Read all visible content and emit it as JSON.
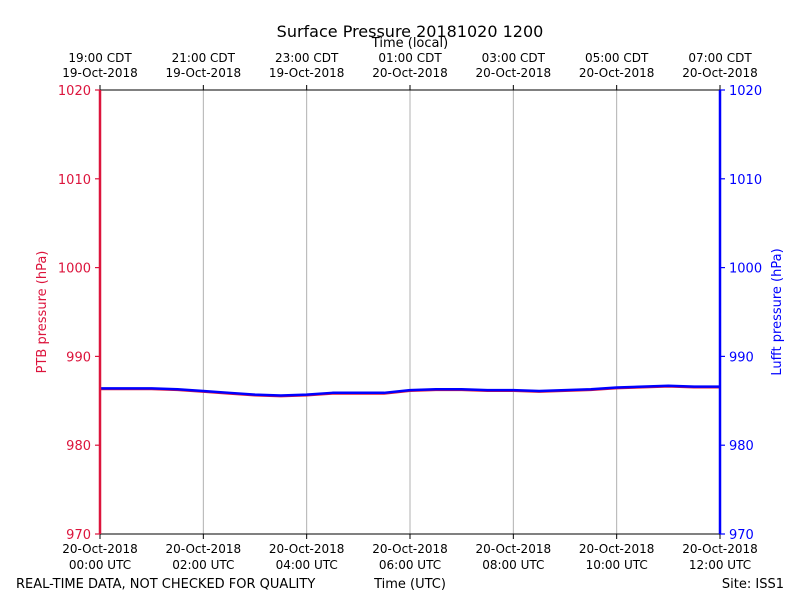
{
  "chart_data": {
    "type": "line",
    "title": "Surface Pressure 20181020 1200",
    "top_axis_label": "Time (local)",
    "xlabel": "Time (UTC)",
    "ylabel_left": "PTB pressure (hPa)",
    "ylabel_right": "Lufft pressure (hPa)",
    "ylim": [
      970,
      1020
    ],
    "y_ticks": [
      "970",
      "980",
      "990",
      "1000",
      "1010",
      "1020"
    ],
    "x_range_hours_utc": [
      0,
      12
    ],
    "bottom_ticks": [
      {
        "hour": 0,
        "line1": "20-Oct-2018",
        "line2": "00:00 UTC"
      },
      {
        "hour": 2,
        "line1": "20-Oct-2018",
        "line2": "02:00 UTC"
      },
      {
        "hour": 4,
        "line1": "20-Oct-2018",
        "line2": "04:00 UTC"
      },
      {
        "hour": 6,
        "line1": "20-Oct-2018",
        "line2": "06:00 UTC"
      },
      {
        "hour": 8,
        "line1": "20-Oct-2018",
        "line2": "08:00 UTC"
      },
      {
        "hour": 10,
        "line1": "20-Oct-2018",
        "line2": "10:00 UTC"
      },
      {
        "hour": 12,
        "line1": "20-Oct-2018",
        "line2": "12:00 UTC"
      }
    ],
    "top_ticks": [
      {
        "hour": 0,
        "line1": "19:00 CDT",
        "line2": "19-Oct-2018"
      },
      {
        "hour": 2,
        "line1": "21:00 CDT",
        "line2": "19-Oct-2018"
      },
      {
        "hour": 4,
        "line1": "23:00 CDT",
        "line2": "19-Oct-2018"
      },
      {
        "hour": 6,
        "line1": "01:00 CDT",
        "line2": "20-Oct-2018"
      },
      {
        "hour": 8,
        "line1": "03:00 CDT",
        "line2": "20-Oct-2018"
      },
      {
        "hour": 10,
        "line1": "05:00 CDT",
        "line2": "20-Oct-2018"
      },
      {
        "hour": 12,
        "line1": "07:00 CDT",
        "line2": "20-Oct-2018"
      }
    ],
    "series": [
      {
        "name": "PTB pressure",
        "axis": "left",
        "color": "#dc143c",
        "x": [
          0,
          0.5,
          1,
          1.5,
          2,
          2.5,
          3,
          3.5,
          4,
          4.5,
          5,
          5.5,
          6,
          6.5,
          7,
          7.5,
          8,
          8.5,
          9,
          9.5,
          10,
          10.5,
          11,
          11.5,
          12
        ],
        "values": [
          986.3,
          986.3,
          986.3,
          986.2,
          986.0,
          985.8,
          985.6,
          985.5,
          985.6,
          985.8,
          985.8,
          985.8,
          986.1,
          986.2,
          986.2,
          986.1,
          986.1,
          986.0,
          986.1,
          986.2,
          986.4,
          986.5,
          986.6,
          986.5,
          986.5
        ]
      },
      {
        "name": "Lufft pressure",
        "axis": "right",
        "color": "#0000ff",
        "x": [
          0,
          0.5,
          1,
          1.5,
          2,
          2.5,
          3,
          3.5,
          4,
          4.5,
          5,
          5.5,
          6,
          6.5,
          7,
          7.5,
          8,
          8.5,
          9,
          9.5,
          10,
          10.5,
          11,
          11.5,
          12
        ],
        "values": [
          986.4,
          986.4,
          986.4,
          986.3,
          986.1,
          985.9,
          985.7,
          985.6,
          985.7,
          985.9,
          985.9,
          985.9,
          986.2,
          986.3,
          986.3,
          986.2,
          986.2,
          986.1,
          986.2,
          986.3,
          986.5,
          986.6,
          986.7,
          986.6,
          986.6
        ]
      }
    ],
    "grid": "vertical"
  },
  "footer": {
    "quality_note": "REAL-TIME DATA, NOT CHECKED FOR QUALITY",
    "site": "Site: ISS1"
  },
  "colors": {
    "left_axis": "#dc143c",
    "right_axis": "#0000ff",
    "grid": "#b0b0b0"
  }
}
